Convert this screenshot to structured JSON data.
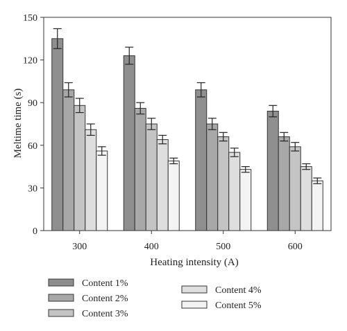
{
  "chart_data": {
    "type": "bar",
    "title": "",
    "xlabel": "Heating intensity (A)",
    "ylabel": "Meltime time (s)",
    "ylim": [
      0,
      150
    ],
    "yticks": [
      0,
      30,
      60,
      90,
      120,
      150
    ],
    "categories": [
      "300",
      "400",
      "500",
      "600"
    ],
    "series": [
      {
        "name": "Content 1%",
        "color": "#8f8f8f",
        "values": [
          135,
          123,
          99,
          84
        ],
        "errors": [
          7,
          6,
          5,
          4
        ]
      },
      {
        "name": "Content 2%",
        "color": "#a8a8a8",
        "values": [
          99,
          86,
          75,
          66
        ],
        "errors": [
          5,
          4,
          4,
          3
        ]
      },
      {
        "name": "Content 3%",
        "color": "#c4c4c4",
        "values": [
          88,
          75,
          66,
          59
        ],
        "errors": [
          5,
          4,
          3,
          3
        ]
      },
      {
        "name": "Content 4%",
        "color": "#dedede",
        "values": [
          71,
          64,
          55,
          45
        ],
        "errors": [
          4,
          3,
          3,
          2
        ]
      },
      {
        "name": "Content 5%",
        "color": "#f4f4f4",
        "values": [
          56,
          49,
          43,
          35
        ],
        "errors": [
          3,
          2,
          2,
          2
        ]
      }
    ],
    "grid": false,
    "legend_position": "bottom"
  }
}
